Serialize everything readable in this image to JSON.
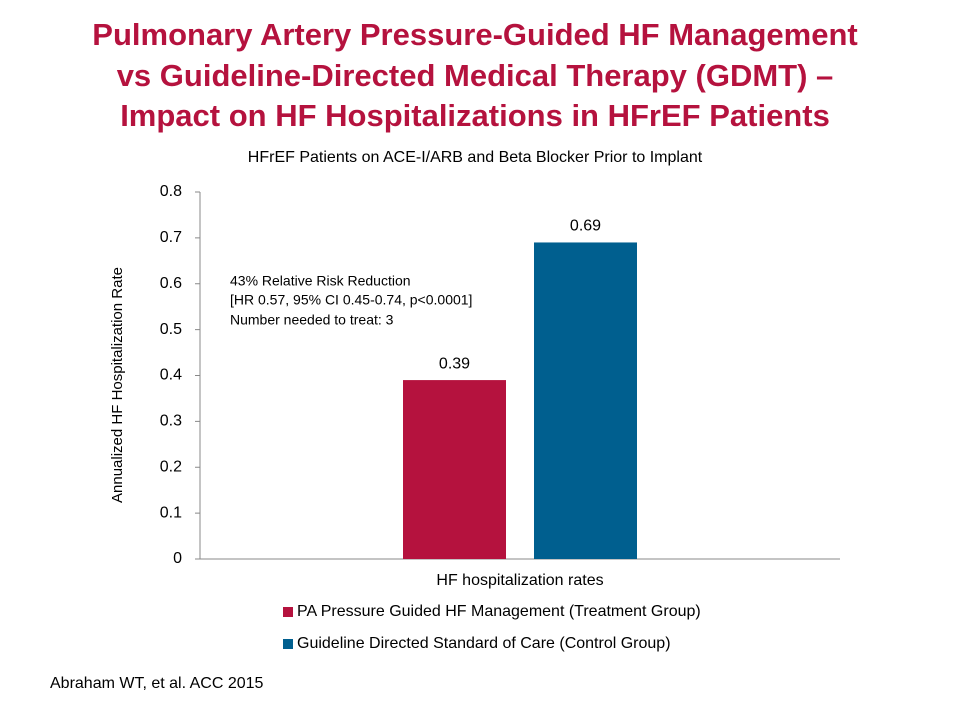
{
  "chart_data": {
    "type": "bar",
    "title": [
      "Pulmonary Artery Pressure-Guided HF Management",
      "vs Guideline-Directed Medical Therapy (GDMT) –",
      "Impact on HF Hospitalizations in HFrEF Patients"
    ],
    "subtitle": "HFrEF Patients on ACE-I/ARB and Beta Blocker Prior to Implant",
    "y_label": "Annualized HF Hospitalization Rate",
    "categories": [
      "HF hospitalization rates"
    ],
    "series": [
      {
        "name": "PA Pressure Guided HF Management (Treatment Group)",
        "color": "#b5123e",
        "values": [
          0.39
        ]
      },
      {
        "name": "Guideline Directed Standard of Care (Control Group)",
        "color": "#005f8f",
        "values": [
          0.69
        ]
      }
    ],
    "ylim": [
      0,
      0.8
    ],
    "yticks": [
      0,
      0.1,
      0.2,
      0.3,
      0.4,
      0.5,
      0.6,
      0.7,
      0.8
    ],
    "annotation": [
      "43% Relative Risk Reduction",
      "[HR 0.57, 95% CI 0.45-0.74, p<0.0001]",
      "Number needed to treat: 3"
    ],
    "source": "Abraham WT, et al. ACC 2015"
  }
}
